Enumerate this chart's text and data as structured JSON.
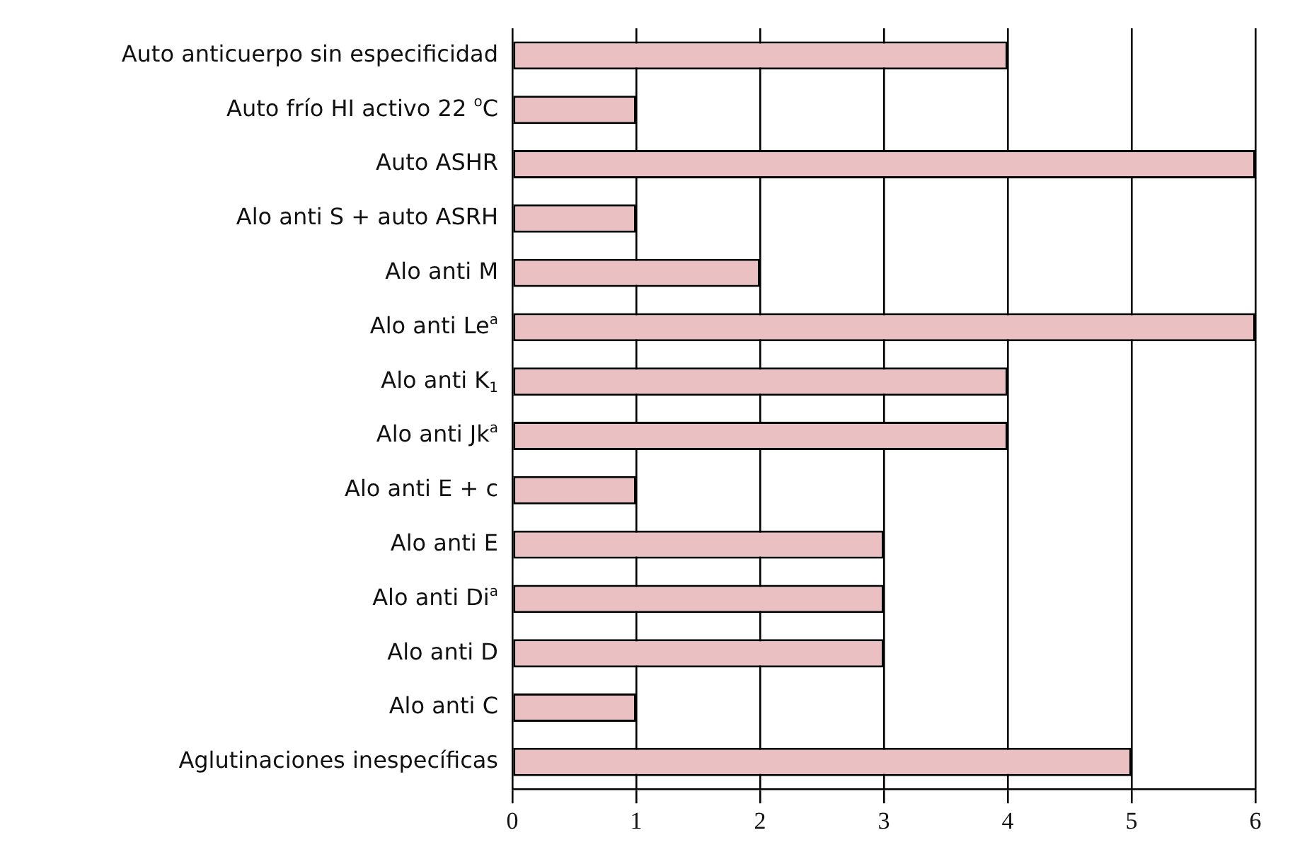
{
  "chart_data": {
    "type": "bar",
    "orientation": "horizontal",
    "categories": [
      "Auto anticuerpo sin especificidad",
      "Auto frío HI activo 22 $^{o}$C",
      "Auto ASHR",
      "Alo anti S + auto ASRH",
      "Alo anti M",
      "Alo anti Le$^{a}$",
      "Alo anti K$_{1}$",
      "Alo anti Jk$^{a}$",
      "Alo anti E + c",
      "Alo anti E",
      "Alo anti Di$^{a}$",
      "Alo anti D",
      "Alo anti C",
      "Aglutinaciones inespecíficas"
    ],
    "values": [
      4,
      1,
      6,
      1,
      2,
      6,
      4,
      4,
      1,
      3,
      3,
      3,
      1,
      5
    ],
    "color": "#ebc0c3",
    "xlim": [
      0,
      6
    ],
    "xticks": [
      0,
      1,
      2,
      3,
      4,
      5,
      6
    ],
    "grid": "x"
  }
}
